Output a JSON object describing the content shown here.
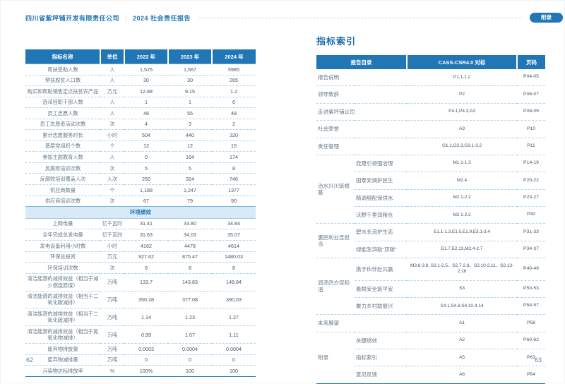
{
  "colors": {
    "accent": "#2176b5",
    "row_divider": "#aed3ec",
    "section_bg": "#d9eaf6"
  },
  "header": {
    "company": "四川省紫坪铺开发有限责任公司",
    "divider": "｜",
    "report": "2024 社会责任报告",
    "tab": "附录"
  },
  "left_page": {
    "page_number": "62",
    "kpi_table": {
      "headers": [
        "指标名称",
        "单位",
        "2022 年",
        "2023 年",
        "2024 年"
      ],
      "social_rows": [
        [
          "帮扶受助人数",
          "人",
          "1,525",
          "1,567",
          "5985"
        ],
        [
          "帮扶脱贫人口数",
          "人",
          "30",
          "30",
          "265"
        ],
        [
          "购买和帮助销售定点扶贫农产品",
          "万元",
          "12.88",
          "9.15",
          "1.2"
        ],
        [
          "选派挂职干部人数",
          "人",
          "1",
          "1",
          "6"
        ],
        [
          "员工志愿人数",
          "人",
          "48",
          "55",
          "48"
        ],
        [
          "员工志愿者活动次数",
          "次",
          "4",
          "3",
          "2"
        ],
        [
          "累计志愿服务时长",
          "小时",
          "504",
          "440",
          "320"
        ],
        [
          "基层党组织个数",
          "个",
          "12",
          "12",
          "15"
        ],
        [
          "参加主题教育人数",
          "人",
          "0",
          "164",
          "174"
        ],
        [
          "反腐败培训次数",
          "次",
          "5",
          "5",
          "8"
        ],
        [
          "反腐败培训覆盖人次",
          "人次",
          "250",
          "324",
          "746"
        ],
        [
          "供应商数量",
          "个",
          "1,188",
          "1,247",
          "1377"
        ],
        [
          "供应商培训次数",
          "次",
          "67",
          "79",
          "90"
        ]
      ],
      "section_header": "环境绩效",
      "env_rows": [
        [
          "上网电量",
          "亿千瓦时",
          "31.41",
          "33.80",
          "34.84"
        ],
        [
          "全年完成总发电量",
          "亿千瓦时",
          "31.63",
          "34.03",
          "35.07"
        ],
        [
          "发电设备利用小时数",
          "小时",
          "4162",
          "4478",
          "4614"
        ],
        [
          "环保总投资",
          "万元",
          "927.62",
          "875.47",
          "1480.03"
        ],
        [
          "环保培训次数",
          "次",
          "6",
          "8",
          "8"
        ],
        [
          "清洁能源的减排效益（相当于减少燃烧原煤）",
          "万吨",
          "133.7",
          "143.83",
          "148.84"
        ],
        [
          "清洁能源的减排效益（相当于二氧化碳减排）",
          "万吨",
          "350.28",
          "377.08",
          "390.03"
        ],
        [
          "清洁能源的减排效益（相当于二氧化硫减排）",
          "万吨",
          "1.14",
          "1.23",
          "1.27"
        ],
        [
          "清洁能源的减排效益（相当于氮氧化物减排）",
          "万吨",
          "0.99",
          "1.07",
          "1.11"
        ],
        [
          "废弃物排放量",
          "万吨",
          "0.0003",
          "0.0004",
          "0.0004"
        ],
        [
          "废弃物减排量",
          "万吨",
          "0",
          "0",
          "0"
        ],
        [
          "污染物达标排放率",
          "%",
          "100%",
          "100",
          "100"
        ]
      ]
    }
  },
  "right_page": {
    "title": "指标索引",
    "page_number": "63",
    "index_table": {
      "headers": [
        "报告目录",
        "CASS-CSR4.0 对标",
        "页码"
      ],
      "rows": [
        {
          "item": "报告说明",
          "code": "P1.1-1.2",
          "page": "P04-05"
        },
        {
          "item": "领导致辞",
          "code": "P2",
          "page": "P06-07"
        },
        {
          "item": "走进紫坪铺公司",
          "code": "P4.1,P4.3,A3",
          "page": "P08-09"
        },
        {
          "item": "社会荣誉",
          "code": "A3",
          "page": "P10"
        },
        {
          "item": "责任管理",
          "code": "G1.1,G2.3,G3.1-3.2",
          "page": "P11"
        },
        {
          "group": "治水兴川筑根基",
          "span": 4,
          "item": "党建引领强治理",
          "code": "M1.1-1.3",
          "page": "P14-19"
        },
        {
          "item": "国泰安澜护民生",
          "code": "M2.4",
          "page": "P20-22"
        },
        {
          "item": "精调细配保供水",
          "code": "M2.1-2.2",
          "page": "P23-27"
        },
        {
          "item": "沃野千里润粮仓",
          "code": "M2.1-2.2",
          "page": "P30"
        },
        {
          "group": "惠民利业显担当",
          "span": 2,
          "item": "碧水长流护生态",
          "code": "E1.1-1.3,E1.5,E1.9,E3.1-3.4",
          "page": "P31-33"
        },
        {
          "item": "绿能澎湃助“双碳”",
          "code": "E1.7,E2.13,M2.4-2.7",
          "page": "P34-37"
        },
        {
          "group": "润泽四方促和谐",
          "span": 3,
          "item": "携手伙伴赴共赢",
          "code": "M3.6-3.8, S2.1-2.5、S2.7-2.8、S2.10-2.11、S2.13-2.18",
          "page": "P40-49"
        },
        {
          "item": "着眼安全筑平安",
          "code": "S3",
          "page": "P50-53"
        },
        {
          "item": "聚力乡村助振兴",
          "code": "S4.1,S4.8,S4.10-4.14",
          "page": "P54-57"
        },
        {
          "item": "未来展望",
          "code": "A1",
          "page": "P58"
        },
        {
          "group": "附录",
          "span": 3,
          "item": "关键绩效",
          "code": "A2",
          "page": "P60-62"
        },
        {
          "item": "指标索引",
          "code": "A5",
          "page": "P63"
        },
        {
          "item": "意见反馈",
          "code": "A6",
          "page": "P64"
        }
      ]
    }
  }
}
